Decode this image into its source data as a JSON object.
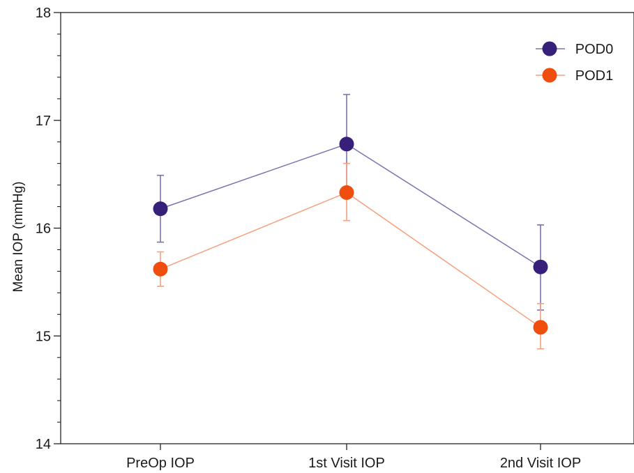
{
  "chart_data": {
    "type": "line",
    "title": "",
    "xlabel": "",
    "ylabel": "Mean IOP (mmHg)",
    "categories": [
      "PreOp IOP",
      "1st Visit IOP",
      "2nd Visit IOP"
    ],
    "ylim": [
      14,
      18
    ],
    "yticks": [
      14,
      15,
      16,
      17,
      18
    ],
    "y_minor_step": 0.2,
    "grid": false,
    "legend_position": "top-right",
    "series": [
      {
        "name": "POD0",
        "color": "#36207a",
        "line_color": "#7b72b0",
        "values": [
          16.18,
          16.78,
          15.64
        ],
        "error_upper": [
          16.49,
          17.24,
          16.03
        ],
        "error_lower": [
          15.87,
          16.32,
          15.24
        ]
      },
      {
        "name": "POD1",
        "color": "#f04e0e",
        "line_color": "#f5a07e",
        "values": [
          15.62,
          16.33,
          15.08
        ],
        "error_upper": [
          15.78,
          16.6,
          15.3
        ],
        "error_lower": [
          15.46,
          16.07,
          14.88
        ]
      }
    ]
  }
}
